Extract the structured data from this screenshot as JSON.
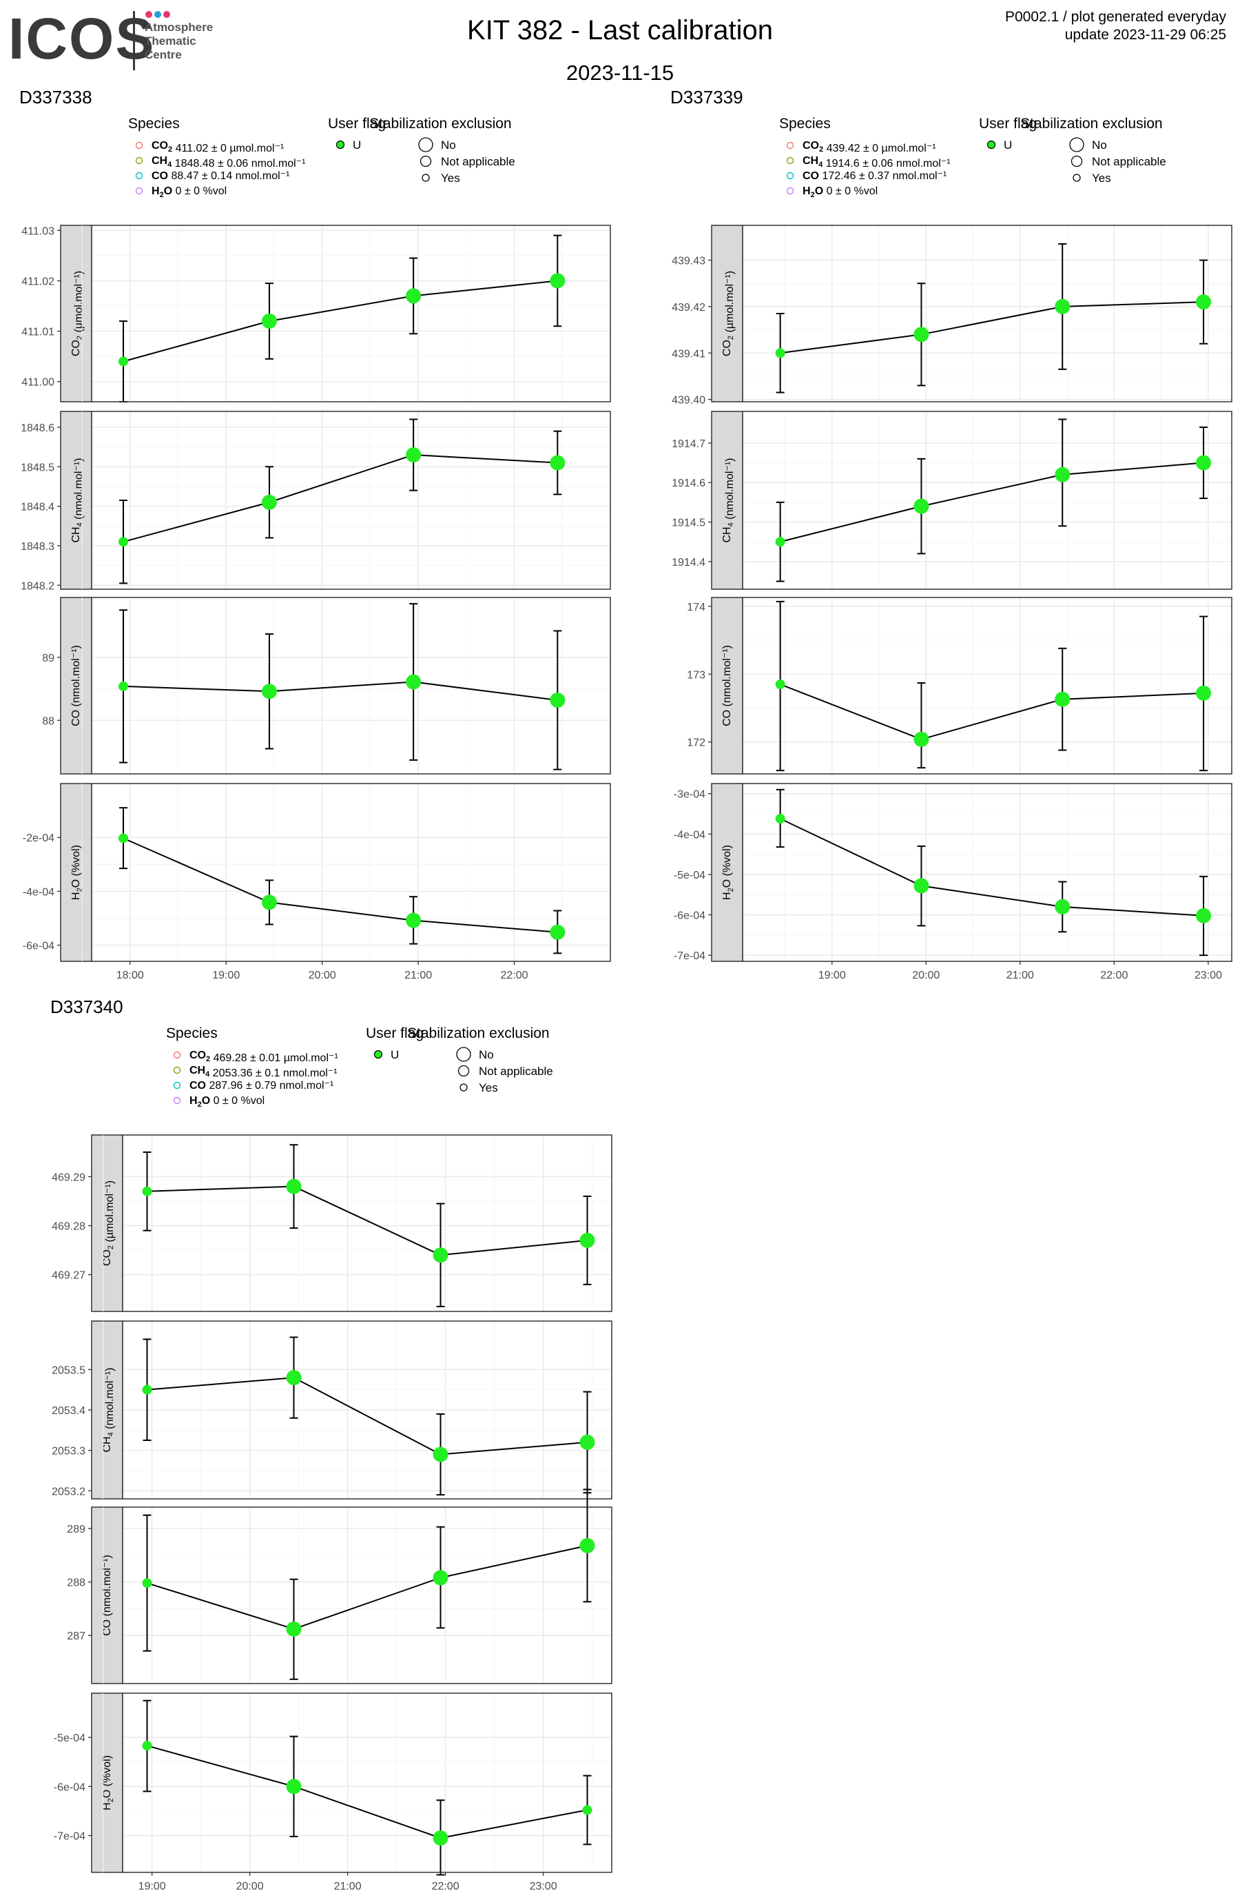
{
  "header": {
    "logo_text": "ICOS",
    "logo_line1": "Atmosphere",
    "logo_line2": "Thematic",
    "logo_line3": "Centre",
    "logo_colors": [
      "#e8386b",
      "#2b9ed8",
      "#e8386b"
    ],
    "title": "KIT 382 - Last calibration",
    "date": "2023-11-15",
    "corner_line1": "P0002.1 / plot generated everyday",
    "corner_line2": "update  2023-11-29 06:25"
  },
  "legend_labels": {
    "species": "Species",
    "user_flag": "User flag",
    "stab": "Stabilization exclusion",
    "flag_u": "U",
    "stab_no": "No",
    "stab_na": "Not applicable",
    "stab_yes": "Yes"
  },
  "colors": {
    "point": "#22ee22",
    "co2": "#f8766d",
    "ch4": "#7cae00",
    "co": "#00bfc4",
    "h2o": "#c77cff",
    "panel_strip": "#d9d9d9",
    "grid": "#ebebeb"
  },
  "chart_data": [
    {
      "type": "scatter",
      "title": "D337338",
      "xlabel": "",
      "xticks": [
        "18:00",
        "19:00",
        "20:00",
        "21:00",
        "22:00"
      ],
      "xtick_hours": [
        18,
        19,
        20,
        21,
        22
      ],
      "xlim": [
        17.6,
        23.0
      ],
      "legend": [
        {
          "chem": "CO2",
          "value": "411.02 ± 0 µmol.mol⁻¹"
        },
        {
          "chem": "CH4",
          "value": "1848.48 ± 0.06 nmol.mol⁻¹"
        },
        {
          "chem": "CO",
          "value": "88.47 ± 0.14 nmol.mol⁻¹"
        },
        {
          "chem": "H2O",
          "value": "0 ± 0 %vol"
        }
      ],
      "series": [
        {
          "strip": "CO2 (µmol.mol⁻¹)",
          "ylim": [
            410.996,
            411.031
          ],
          "yticks": [
            411.0,
            411.01,
            411.02,
            411.03
          ],
          "ytick_labels": [
            "411.00",
            "411.01",
            "411.02",
            "411.03"
          ],
          "points": [
            {
              "t": 17.93,
              "y": 411.004,
              "lo": 410.996,
              "hi": 411.012,
              "stab": "Yes"
            },
            {
              "t": 19.45,
              "y": 411.012,
              "lo": 411.0045,
              "hi": 411.0195,
              "stab": "No"
            },
            {
              "t": 20.95,
              "y": 411.017,
              "lo": 411.0095,
              "hi": 411.0245,
              "stab": "No"
            },
            {
              "t": 22.45,
              "y": 411.02,
              "lo": 411.011,
              "hi": 411.029,
              "stab": "No"
            }
          ]
        },
        {
          "strip": "CH4 (nmol.mol⁻¹)",
          "ylim": [
            1848.19,
            1848.64
          ],
          "yticks": [
            1848.2,
            1848.3,
            1848.4,
            1848.5,
            1848.6
          ],
          "ytick_labels": [
            "1848.2",
            "1848.3",
            "1848.4",
            "1848.5",
            "1848.6"
          ],
          "points": [
            {
              "t": 17.93,
              "y": 1848.31,
              "lo": 1848.205,
              "hi": 1848.415,
              "stab": "Yes"
            },
            {
              "t": 19.45,
              "y": 1848.41,
              "lo": 1848.32,
              "hi": 1848.5,
              "stab": "No"
            },
            {
              "t": 20.95,
              "y": 1848.53,
              "lo": 1848.44,
              "hi": 1848.62,
              "stab": "No"
            },
            {
              "t": 22.45,
              "y": 1848.51,
              "lo": 1848.43,
              "hi": 1848.59,
              "stab": "No"
            }
          ]
        },
        {
          "strip": "CO (nmol.mol⁻¹)",
          "ylim": [
            87.15,
            89.95
          ],
          "yticks": [
            88,
            89
          ],
          "ytick_labels": [
            "88",
            "89"
          ],
          "points": [
            {
              "t": 17.93,
              "y": 88.54,
              "lo": 87.33,
              "hi": 89.75,
              "stab": "Yes"
            },
            {
              "t": 19.45,
              "y": 88.46,
              "lo": 87.55,
              "hi": 89.37,
              "stab": "No"
            },
            {
              "t": 20.95,
              "y": 88.61,
              "lo": 87.37,
              "hi": 89.85,
              "stab": "No"
            },
            {
              "t": 22.45,
              "y": 88.32,
              "lo": 87.22,
              "hi": 89.42,
              "stab": "No"
            }
          ]
        },
        {
          "strip": "H2O (%vol)",
          "ylim": [
            -0.00066,
            -0.0
          ],
          "yticks": [
            -0.0002,
            -0.0004,
            -0.0006
          ],
          "ytick_labels": [
            "-2e-04",
            "-4e-04",
            "-6e-04"
          ],
          "points": [
            {
              "t": 17.93,
              "y": -0.000203,
              "lo": -0.000315,
              "hi": -9e-05,
              "stab": "Yes"
            },
            {
              "t": 19.45,
              "y": -0.000441,
              "lo": -0.000523,
              "hi": -0.000359,
              "stab": "No"
            },
            {
              "t": 20.95,
              "y": -0.000508,
              "lo": -0.000595,
              "hi": -0.00042,
              "stab": "No"
            },
            {
              "t": 22.45,
              "y": -0.000552,
              "lo": -0.00063,
              "hi": -0.000472,
              "stab": "No"
            }
          ]
        }
      ]
    },
    {
      "type": "scatter",
      "title": "D337339",
      "xlabel": "",
      "xticks": [
        "19:00",
        "20:00",
        "21:00",
        "22:00",
        "23:00"
      ],
      "xtick_hours": [
        19,
        20,
        21,
        22,
        23
      ],
      "xlim": [
        18.05,
        23.25
      ],
      "legend": [
        {
          "chem": "CO2",
          "value": "439.42 ± 0 µmol.mol⁻¹"
        },
        {
          "chem": "CH4",
          "value": "1914.6 ± 0.06 nmol.mol⁻¹"
        },
        {
          "chem": "CO",
          "value": "172.46 ± 0.37 nmol.mol⁻¹"
        },
        {
          "chem": "H2O",
          "value": "0 ± 0 %vol"
        }
      ],
      "series": [
        {
          "strip": "CO2 (µmol.mol⁻¹)",
          "ylim": [
            439.3995,
            439.4375
          ],
          "yticks": [
            439.4,
            439.41,
            439.42,
            439.43
          ],
          "ytick_labels": [
            "439.40",
            "439.41",
            "439.42",
            "439.43"
          ],
          "points": [
            {
              "t": 18.45,
              "y": 439.41,
              "lo": 439.4015,
              "hi": 439.4185,
              "stab": "Yes"
            },
            {
              "t": 19.95,
              "y": 439.414,
              "lo": 439.403,
              "hi": 439.425,
              "stab": "No"
            },
            {
              "t": 21.45,
              "y": 439.42,
              "lo": 439.4065,
              "hi": 439.4335,
              "stab": "No"
            },
            {
              "t": 22.95,
              "y": 439.421,
              "lo": 439.412,
              "hi": 439.43,
              "stab": "No"
            }
          ]
        },
        {
          "strip": "CH4 (nmol.mol⁻¹)",
          "ylim": [
            1914.33,
            1914.78
          ],
          "yticks": [
            1914.4,
            1914.5,
            1914.6,
            1914.7
          ],
          "ytick_labels": [
            "1914.4",
            "1914.5",
            "1914.6",
            "1914.7"
          ],
          "points": [
            {
              "t": 18.45,
              "y": 1914.45,
              "lo": 1914.35,
              "hi": 1914.55,
              "stab": "Yes"
            },
            {
              "t": 19.95,
              "y": 1914.54,
              "lo": 1914.42,
              "hi": 1914.66,
              "stab": "No"
            },
            {
              "t": 21.45,
              "y": 1914.62,
              "lo": 1914.49,
              "hi": 1914.76,
              "stab": "No"
            },
            {
              "t": 22.95,
              "y": 1914.65,
              "lo": 1914.56,
              "hi": 1914.74,
              "stab": "No"
            }
          ]
        },
        {
          "strip": "CO (nmol.mol⁻¹)",
          "ylim": [
            171.53,
            174.13
          ],
          "yticks": [
            172,
            173,
            174
          ],
          "ytick_labels": [
            "172",
            "173",
            "174"
          ],
          "points": [
            {
              "t": 18.45,
              "y": 172.85,
              "lo": 171.58,
              "hi": 174.07,
              "stab": "Yes"
            },
            {
              "t": 19.95,
              "y": 172.04,
              "lo": 171.62,
              "hi": 172.87,
              "stab": "No"
            },
            {
              "t": 21.45,
              "y": 172.63,
              "lo": 171.88,
              "hi": 173.38,
              "stab": "No"
            },
            {
              "t": 22.95,
              "y": 172.72,
              "lo": 171.58,
              "hi": 173.85,
              "stab": "No"
            }
          ]
        },
        {
          "strip": "H2O (%vol)",
          "ylim": [
            -0.000715,
            -0.000275
          ],
          "yticks": [
            -0.0003,
            -0.0004,
            -0.0005,
            -0.0006,
            -0.0007
          ],
          "ytick_labels": [
            "-3e-04",
            "-4e-04",
            "-5e-04",
            "-6e-04",
            "-7e-04"
          ],
          "points": [
            {
              "t": 18.45,
              "y": -0.000362,
              "lo": -0.000432,
              "hi": -0.00029,
              "stab": "Yes"
            },
            {
              "t": 19.95,
              "y": -0.000528,
              "lo": -0.000627,
              "hi": -0.00043,
              "stab": "No"
            },
            {
              "t": 21.45,
              "y": -0.00058,
              "lo": -0.000642,
              "hi": -0.000518,
              "stab": "No"
            },
            {
              "t": 22.95,
              "y": -0.000602,
              "lo": -0.0007,
              "hi": -0.000505,
              "stab": "No"
            }
          ]
        }
      ]
    },
    {
      "type": "scatter",
      "title": "D337340",
      "xlabel": "",
      "xticks": [
        "19:00",
        "20:00",
        "21:00",
        "22:00",
        "23:00"
      ],
      "xtick_hours": [
        19,
        20,
        21,
        22,
        23
      ],
      "xlim": [
        18.7,
        23.7
      ],
      "legend": [
        {
          "chem": "CO2",
          "value": "469.28 ± 0.01 µmol.mol⁻¹"
        },
        {
          "chem": "CH4",
          "value": "2053.36 ± 0.1 nmol.mol⁻¹"
        },
        {
          "chem": "CO",
          "value": "287.96 ± 0.79 nmol.mol⁻¹"
        },
        {
          "chem": "H2O",
          "value": "0 ± 0 %vol"
        }
      ],
      "series": [
        {
          "strip": "CO2 (µmol.mol⁻¹)",
          "ylim": [
            469.2625,
            469.2985
          ],
          "yticks": [
            469.27,
            469.28,
            469.29
          ],
          "ytick_labels": [
            "469.27",
            "469.28",
            "469.29"
          ],
          "points": [
            {
              "t": 18.95,
              "y": 469.287,
              "lo": 469.279,
              "hi": 469.295,
              "stab": "Yes"
            },
            {
              "t": 20.45,
              "y": 469.288,
              "lo": 469.2795,
              "hi": 469.2965,
              "stab": "No"
            },
            {
              "t": 21.95,
              "y": 469.274,
              "lo": 469.2635,
              "hi": 469.2845,
              "stab": "No"
            },
            {
              "t": 23.45,
              "y": 469.277,
              "lo": 469.268,
              "hi": 469.286,
              "stab": "No"
            }
          ]
        },
        {
          "strip": "CH4 (nmol.mol⁻¹)",
          "ylim": [
            2053.18,
            2053.62
          ],
          "yticks": [
            2053.2,
            2053.3,
            2053.4,
            2053.5
          ],
          "ytick_labels": [
            "2053.2",
            "2053.3",
            "2053.4",
            "2053.5"
          ],
          "points": [
            {
              "t": 18.95,
              "y": 2053.45,
              "lo": 2053.325,
              "hi": 2053.575,
              "stab": "Yes"
            },
            {
              "t": 20.45,
              "y": 2053.48,
              "lo": 2053.38,
              "hi": 2053.58,
              "stab": "No"
            },
            {
              "t": 21.95,
              "y": 2053.29,
              "lo": 2053.19,
              "hi": 2053.39,
              "stab": "No"
            },
            {
              "t": 23.45,
              "y": 2053.32,
              "lo": 2053.195,
              "hi": 2053.445,
              "stab": "No"
            }
          ]
        },
        {
          "strip": "CO (nmol.mol⁻¹)",
          "ylim": [
            286.1,
            289.4
          ],
          "yticks": [
            287,
            288,
            289
          ],
          "ytick_labels": [
            "287",
            "288",
            "289"
          ],
          "points": [
            {
              "t": 18.95,
              "y": 287.98,
              "lo": 286.71,
              "hi": 289.25,
              "stab": "Yes"
            },
            {
              "t": 20.45,
              "y": 287.12,
              "lo": 286.18,
              "hi": 288.05,
              "stab": "No"
            },
            {
              "t": 21.95,
              "y": 288.08,
              "lo": 287.14,
              "hi": 289.03,
              "stab": "No"
            },
            {
              "t": 23.45,
              "y": 288.68,
              "lo": 287.63,
              "hi": 289.73,
              "stab": "No"
            }
          ]
        },
        {
          "strip": "H2O (%vol)",
          "ylim": [
            -0.000775,
            -0.00041
          ],
          "yticks": [
            -0.0005,
            -0.0006,
            -0.0007
          ],
          "ytick_labels": [
            "-5e-04",
            "-6e-04",
            "-7e-04"
          ],
          "points": [
            {
              "t": 18.95,
              "y": -0.000517,
              "lo": -0.00061,
              "hi": -0.000425,
              "stab": "Yes"
            },
            {
              "t": 20.45,
              "y": -0.0006,
              "lo": -0.000702,
              "hi": -0.000498,
              "stab": "No"
            },
            {
              "t": 21.95,
              "y": -0.000705,
              "lo": -0.00078,
              "hi": -0.000628,
              "stab": "No"
            },
            {
              "t": 23.45,
              "y": -0.000648,
              "lo": -0.000718,
              "hi": -0.000578,
              "stab": "Yes"
            }
          ]
        }
      ]
    }
  ]
}
